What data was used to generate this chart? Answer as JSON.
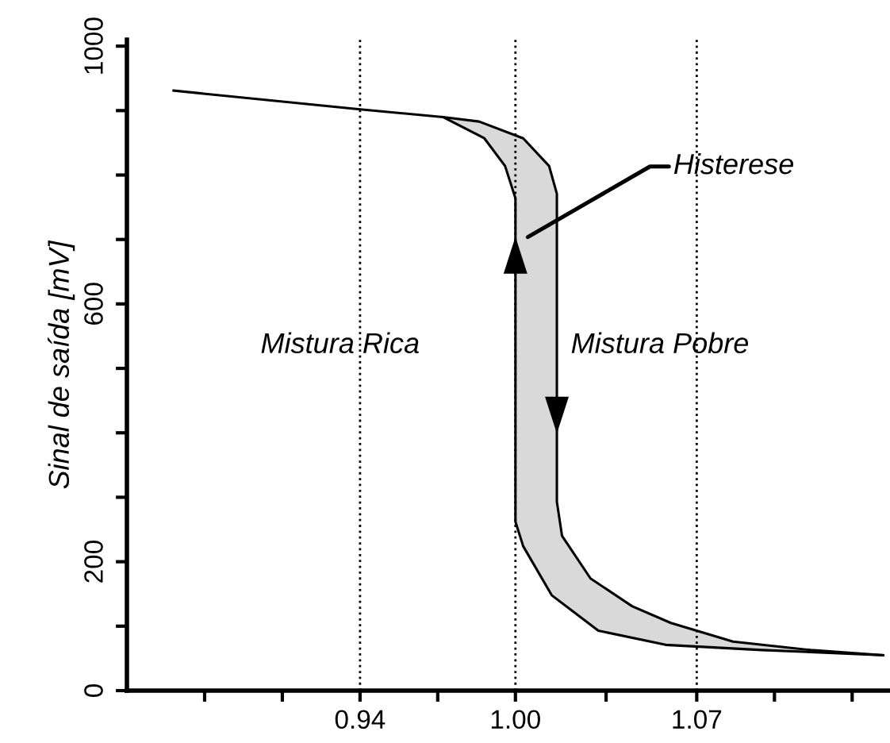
{
  "chart_data": {
    "type": "line",
    "ylabel": "Sinal de saída [mV]",
    "annotations": [
      "Histerese",
      "Mistura Rica",
      "Mistura Pobre"
    ],
    "series": [
      {
        "color": "#000000",
        "x": [
          0.868,
          0.94,
          0.972,
          0.988,
          0.996,
          1.0,
          1.0,
          1.003,
          1.014,
          1.032,
          1.058,
          1.095,
          1.142
        ],
        "values": [
          931,
          902,
          890,
          857,
          814,
          764,
          262,
          224,
          148,
          93,
          71,
          63,
          55
        ]
      },
      {
        "color": "#000000",
        "x": [
          0.972,
          0.986,
          1.003,
          1.013,
          1.016,
          1.016,
          1.018,
          1.029,
          1.045,
          1.06,
          1.084,
          1.114,
          1.142
        ],
        "values": [
          890,
          883,
          857,
          814,
          771,
          293,
          240,
          174,
          131,
          105,
          76,
          63,
          55
        ]
      }
    ],
    "xlim": [
      0.85,
      1.144
    ],
    "ylim": [
      0,
      1010
    ],
    "xticks": [
      {
        "value": 0.88,
        "label": null
      },
      {
        "value": 0.91,
        "label": null
      },
      0.94,
      {
        "value": 0.97,
        "label": null
      },
      {
        "value": 1.0,
        "label": "1.00"
      },
      {
        "value": 1.035,
        "label": null
      },
      1.07,
      {
        "value": 1.1,
        "label": null
      },
      {
        "value": 1.13,
        "label": null
      }
    ],
    "yticks": [
      0,
      {
        "value": 100,
        "label": null
      },
      200,
      {
        "value": 300,
        "label": null
      },
      {
        "value": 400,
        "label": null
      },
      {
        "value": 500,
        "label": null
      },
      600,
      {
        "value": 700,
        "label": null
      },
      {
        "value": 800,
        "label": null
      },
      {
        "value": 900,
        "label": null
      },
      1000
    ],
    "ref_lines": [
      {
        "axis": "x",
        "value": 0.94,
        "line_style": "dotted",
        "color": "#000000"
      },
      {
        "axis": "x",
        "value": 1.0,
        "line_style": "dotted",
        "color": "#000000"
      },
      {
        "axis": "x",
        "value": 1.07,
        "line_style": "dotted",
        "color": "#000000"
      }
    ],
    "grid": false,
    "marker": "none",
    "line_style": "solid"
  }
}
